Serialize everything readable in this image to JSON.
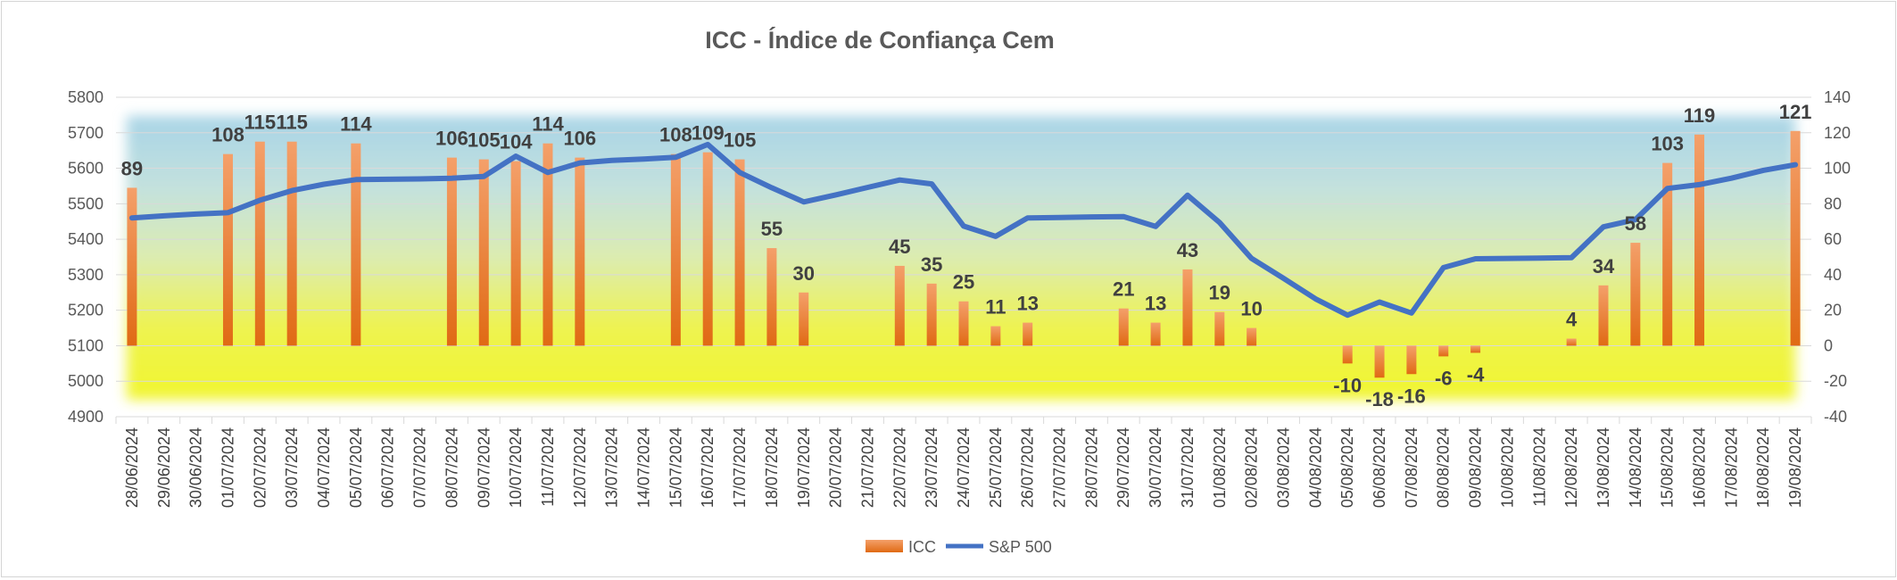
{
  "chart_data": {
    "type": "bar",
    "title": "ICC - Índice de Confiança Cem",
    "xlabel": "",
    "ylabel": "",
    "left_axis": {
      "min": 4900,
      "max": 5800,
      "step": 100
    },
    "right_axis": {
      "min": -40,
      "max": 140,
      "step": 20
    },
    "categories": [
      "28/06/2024",
      "29/06/2024",
      "30/06/2024",
      "01/07/2024",
      "02/07/2024",
      "03/07/2024",
      "04/07/2024",
      "05/07/2024",
      "06/07/2024",
      "07/07/2024",
      "08/07/2024",
      "09/07/2024",
      "10/07/2024",
      "11/07/2024",
      "12/07/2024",
      "13/07/2024",
      "14/07/2024",
      "15/07/2024",
      "16/07/2024",
      "17/07/2024",
      "18/07/2024",
      "19/07/2024",
      "20/07/2024",
      "21/07/2024",
      "22/07/2024",
      "23/07/2024",
      "24/07/2024",
      "25/07/2024",
      "26/07/2024",
      "27/07/2024",
      "28/07/2024",
      "29/07/2024",
      "30/07/2024",
      "31/07/2024",
      "01/08/2024",
      "02/08/2024",
      "03/08/2024",
      "04/08/2024",
      "05/08/2024",
      "06/08/2024",
      "07/08/2024",
      "08/08/2024",
      "09/08/2024",
      "10/08/2024",
      "11/08/2024",
      "12/08/2024",
      "13/08/2024",
      "14/08/2024",
      "15/08/2024",
      "16/08/2024",
      "17/08/2024",
      "18/08/2024",
      "19/08/2024"
    ],
    "series": [
      {
        "name": "ICC",
        "type": "bar",
        "axis": "right",
        "color": "#ed7d31",
        "values": [
          89,
          null,
          null,
          108,
          115,
          115,
          null,
          114,
          null,
          null,
          106,
          105,
          104,
          114,
          106,
          null,
          null,
          108,
          109,
          105,
          55,
          30,
          null,
          null,
          45,
          35,
          25,
          11,
          13,
          null,
          null,
          21,
          13,
          43,
          19,
          10,
          null,
          null,
          -10,
          -18,
          -16,
          -6,
          -4,
          null,
          null,
          4,
          34,
          58,
          103,
          119,
          null,
          null,
          121
        ]
      },
      {
        "name": "S&P 500",
        "type": "line",
        "axis": "left",
        "color": "#4472c4",
        "values": [
          5460,
          5466,
          5471,
          5475,
          5510,
          5537,
          5555,
          5568,
          5569,
          5570,
          5572,
          5577,
          5634,
          5588,
          5615,
          5622,
          5626,
          5631,
          5667,
          5588,
          5545,
          5505,
          5525,
          5546,
          5567,
          5556,
          5437,
          5408,
          5460,
          5461,
          5463,
          5464,
          5436,
          5524,
          5447,
          5346,
          5290,
          5232,
          5186,
          5223,
          5192,
          5320,
          5345,
          5346,
          5347,
          5348,
          5435,
          5455,
          5543,
          5554,
          5572,
          5594,
          5610
        ]
      }
    ],
    "legend": [
      "ICC",
      "S&P 500"
    ],
    "legend_position": "bottom"
  }
}
